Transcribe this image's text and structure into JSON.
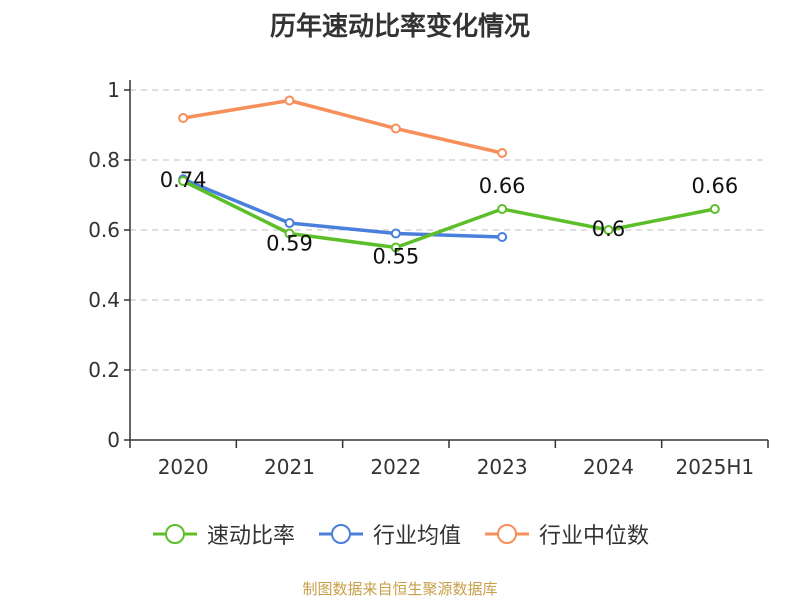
{
  "chart_data": {
    "type": "line",
    "title": "历年速动比率变化情况",
    "categories": [
      "2020",
      "2021",
      "2022",
      "2023",
      "2024",
      "2025H1"
    ],
    "ylim": [
      0,
      1
    ],
    "yticks": [
      "0",
      "0.2",
      "0.4",
      "0.6",
      "0.8",
      "1"
    ],
    "ytick_values": [
      0,
      0.2,
      0.4,
      0.6,
      0.8,
      1
    ],
    "grid": true,
    "legend_position": "bottom",
    "series": [
      {
        "name": "速动比率",
        "color": "#5cbf2a",
        "values": [
          0.74,
          0.59,
          0.55,
          0.66,
          0.6,
          0.66
        ],
        "labels": [
          "0.74",
          "0.59",
          "0.55",
          "0.66",
          "0.6",
          "0.66"
        ]
      },
      {
        "name": "行业均值",
        "color": "#4a7fdc",
        "values": [
          0.745,
          0.62,
          0.59,
          0.58,
          null,
          null
        ]
      },
      {
        "name": "行业中位数",
        "color": "#f68f5a",
        "values": [
          0.92,
          0.97,
          0.89,
          0.82,
          null,
          null
        ]
      }
    ]
  },
  "source": "制图数据来自恒生聚源数据库"
}
